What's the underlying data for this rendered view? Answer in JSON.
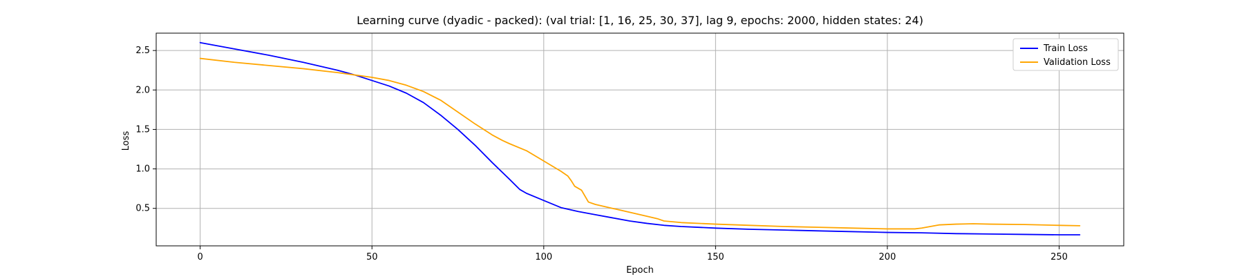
{
  "chart_data": {
    "type": "line",
    "title": "Learning curve (dyadic - packed): (val trial: [1, 16, 25, 30, 37], lag 9, epochs: 2000, hidden states: 24)",
    "xlabel": "Epoch",
    "ylabel": "Loss",
    "xlim": [
      -12.8,
      268.8
    ],
    "ylim": [
      0.025,
      2.72
    ],
    "xticks": [
      0,
      50,
      100,
      150,
      200,
      250
    ],
    "yticks": [
      0.5,
      1.0,
      1.5,
      2.0,
      2.5
    ],
    "xtick_labels": [
      "0",
      "50",
      "100",
      "150",
      "200",
      "250"
    ],
    "ytick_labels": [
      "0.5",
      "1.0",
      "1.5",
      "2.0",
      "2.5"
    ],
    "grid": true,
    "legend_position": "upper right",
    "series": [
      {
        "name": "Train Loss",
        "color": "#0000ff",
        "points": [
          [
            0,
            2.6
          ],
          [
            10,
            2.52
          ],
          [
            20,
            2.44
          ],
          [
            30,
            2.35
          ],
          [
            40,
            2.25
          ],
          [
            45,
            2.19
          ],
          [
            50,
            2.12
          ],
          [
            55,
            2.05
          ],
          [
            60,
            1.96
          ],
          [
            65,
            1.84
          ],
          [
            70,
            1.68
          ],
          [
            75,
            1.5
          ],
          [
            80,
            1.3
          ],
          [
            85,
            1.08
          ],
          [
            90,
            0.87
          ],
          [
            93,
            0.74
          ],
          [
            95,
            0.69
          ],
          [
            100,
            0.6
          ],
          [
            105,
            0.51
          ],
          [
            110,
            0.46
          ],
          [
            115,
            0.42
          ],
          [
            120,
            0.38
          ],
          [
            125,
            0.34
          ],
          [
            130,
            0.31
          ],
          [
            135,
            0.285
          ],
          [
            140,
            0.27
          ],
          [
            150,
            0.25
          ],
          [
            160,
            0.235
          ],
          [
            170,
            0.225
          ],
          [
            180,
            0.215
          ],
          [
            190,
            0.205
          ],
          [
            200,
            0.195
          ],
          [
            210,
            0.19
          ],
          [
            220,
            0.18
          ],
          [
            230,
            0.175
          ],
          [
            240,
            0.17
          ],
          [
            250,
            0.165
          ],
          [
            256,
            0.165
          ]
        ]
      },
      {
        "name": "Validation Loss",
        "color": "#ffa500",
        "points": [
          [
            0,
            2.4
          ],
          [
            10,
            2.35
          ],
          [
            20,
            2.31
          ],
          [
            30,
            2.27
          ],
          [
            40,
            2.22
          ],
          [
            45,
            2.19
          ],
          [
            50,
            2.16
          ],
          [
            55,
            2.12
          ],
          [
            60,
            2.06
          ],
          [
            65,
            1.98
          ],
          [
            70,
            1.87
          ],
          [
            75,
            1.72
          ],
          [
            80,
            1.57
          ],
          [
            85,
            1.43
          ],
          [
            88,
            1.36
          ],
          [
            90,
            1.32
          ],
          [
            95,
            1.23
          ],
          [
            100,
            1.1
          ],
          [
            105,
            0.97
          ],
          [
            107,
            0.91
          ],
          [
            108,
            0.85
          ],
          [
            109,
            0.78
          ],
          [
            111,
            0.73
          ],
          [
            113,
            0.58
          ],
          [
            115,
            0.55
          ],
          [
            120,
            0.5
          ],
          [
            125,
            0.45
          ],
          [
            130,
            0.4
          ],
          [
            133,
            0.37
          ],
          [
            135,
            0.34
          ],
          [
            140,
            0.32
          ],
          [
            150,
            0.3
          ],
          [
            160,
            0.285
          ],
          [
            170,
            0.27
          ],
          [
            180,
            0.26
          ],
          [
            190,
            0.25
          ],
          [
            200,
            0.24
          ],
          [
            208,
            0.24
          ],
          [
            210,
            0.25
          ],
          [
            215,
            0.29
          ],
          [
            220,
            0.3
          ],
          [
            225,
            0.305
          ],
          [
            230,
            0.3
          ],
          [
            240,
            0.295
          ],
          [
            250,
            0.285
          ],
          [
            256,
            0.28
          ]
        ]
      }
    ]
  }
}
